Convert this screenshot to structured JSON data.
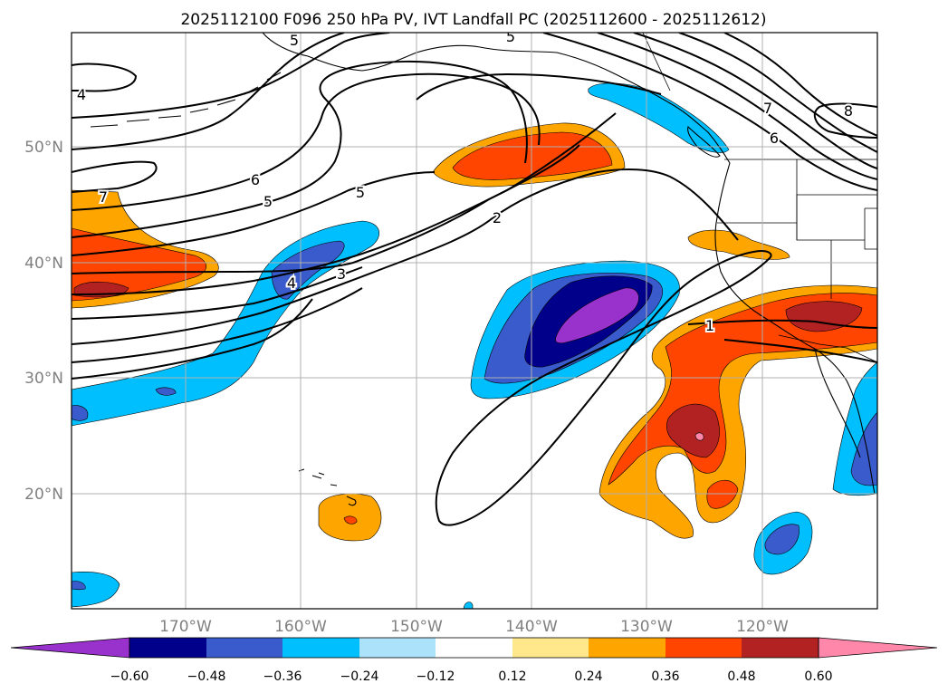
{
  "title": "2025112100 F096 250 hPa PV, IVT Landfall PC (2025112600 - 2025112612)",
  "lat_labels": [
    "50°N",
    "40°N",
    "30°N",
    "20°N"
  ],
  "lon_labels": [
    "170°W",
    "160°W",
    "150°W",
    "140°W",
    "130°W",
    "120°W"
  ],
  "colorbar": {
    "tick_labels": [
      "−0.60",
      "−0.48",
      "−0.36",
      "−0.24",
      "−0.12",
      "0.12",
      "0.24",
      "0.36",
      "0.48",
      "0.60"
    ],
    "colors": [
      "#9932CC",
      "#00008B",
      "#3A5BCB",
      "#00BFFF",
      "#ADE3FA",
      "#FFFFFF",
      "#FFE88C",
      "#FFA500",
      "#FF4500",
      "#B22222",
      "#FF88AA"
    ]
  },
  "contour_labels": [
    "4",
    "5",
    "5",
    "7",
    "8",
    "6",
    "6",
    "5",
    "5",
    "2",
    "7",
    "4",
    "3",
    "1"
  ],
  "colors": {
    "positive_light": "#FFA500",
    "positive_mid": "#FF4500",
    "positive_strong": "#B22222",
    "positive_max": "#FF88AA",
    "negative_light": "#00BFFF",
    "negative_mid": "#3A5BCB",
    "negative_strong": "#00008B",
    "negative_max": "#9932CC"
  }
}
